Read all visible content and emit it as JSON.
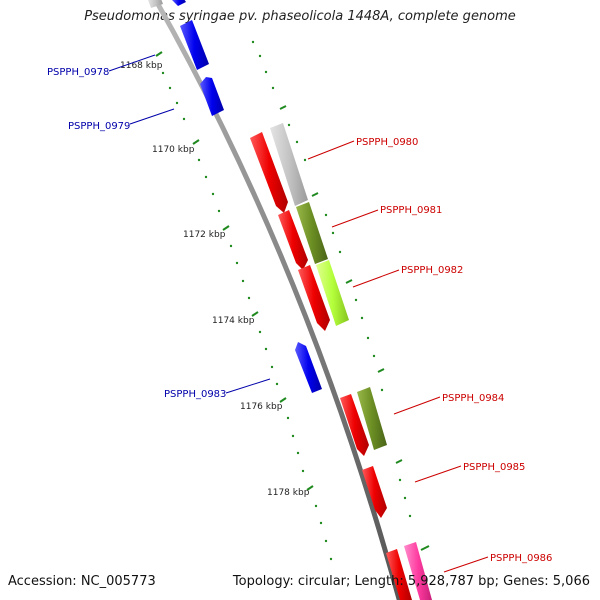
{
  "title": "Pseudomonas syringae pv. phaseolicola 1448A, complete genome",
  "accession_label": "Accession: NC_005773",
  "topology_label": "Topology: circular; Length: 5,928,787 bp; Genes: 5,066",
  "colors": {
    "backbone": "#8a8a8a",
    "tick": "#1f8a1f",
    "forward_gene": "#ee0000",
    "reverse_gene": "#0000ee",
    "label_forward": "#cc0000",
    "label_reverse": "#0000aa",
    "cog_gray": "#c4c4c4",
    "cog_olive": "#6b8e23",
    "cog_lime": "#b4ff3c",
    "cog_pink": "#ff3ca0"
  },
  "ticks": [
    {
      "label": "1168 kbp"
    },
    {
      "label": "1170 kbp"
    },
    {
      "label": "1172 kbp"
    },
    {
      "label": "1174 kbp"
    },
    {
      "label": "1176 kbp"
    },
    {
      "label": "1178 kbp"
    }
  ],
  "gene_labels": [
    {
      "id": "0978",
      "text": "PSPPH_0978",
      "strand": "reverse"
    },
    {
      "id": "0979",
      "text": "PSPPH_0979",
      "strand": "reverse"
    },
    {
      "id": "0980",
      "text": "PSPPH_0980",
      "strand": "forward"
    },
    {
      "id": "0981",
      "text": "PSPPH_0981",
      "strand": "forward"
    },
    {
      "id": "0982",
      "text": "PSPPH_0982",
      "strand": "forward"
    },
    {
      "id": "0983",
      "text": "PSPPH_0983",
      "strand": "reverse"
    },
    {
      "id": "0984",
      "text": "PSPPH_0984",
      "strand": "forward"
    },
    {
      "id": "0985",
      "text": "PSPPH_0985",
      "strand": "forward"
    },
    {
      "id": "0986",
      "text": "PSPPH_0986",
      "strand": "forward"
    }
  ]
}
